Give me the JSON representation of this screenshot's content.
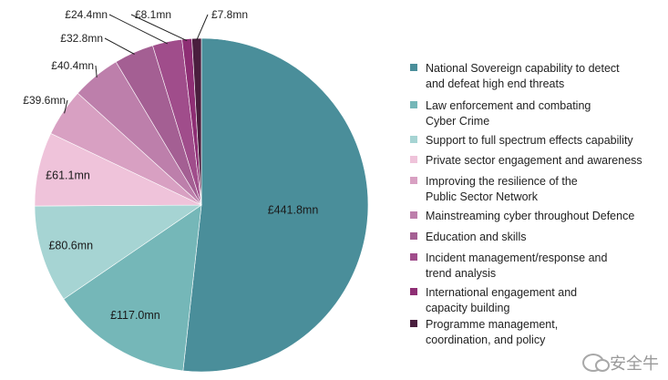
{
  "chart_data": {
    "type": "pie",
    "title": "",
    "slices": [
      {
        "name": "National Sovereign capability to detect and defeat high end threats",
        "legend_lines": [
          "National Sovereign capability to detect",
          "and defeat high end threats"
        ],
        "value": 441.8,
        "label": "£441.8mn",
        "color": "#4a8e9a"
      },
      {
        "name": "Law enforcement and combating Cyber Crime",
        "legend_lines": [
          "Law enforcement and combating",
          "Cyber Crime"
        ],
        "value": 117.0,
        "label": "£117.0mn",
        "color": "#75b7b8"
      },
      {
        "name": "Support to full spectrum effects capability",
        "legend_lines": [
          "Support to full spectrum effects capability"
        ],
        "value": 80.6,
        "label": "£80.6mn",
        "color": "#a6d4d3"
      },
      {
        "name": "Private sector engagement and awareness",
        "legend_lines": [
          "Private sector engagement and awareness"
        ],
        "value": 61.1,
        "label": "£61.1mn",
        "color": "#efc3da"
      },
      {
        "name": "Improving the resilience of the Public Sector Network",
        "legend_lines": [
          "Improving the resilience of the",
          "Public Sector Network"
        ],
        "value": 39.6,
        "label": "£39.6mn",
        "color": "#d8a0c2"
      },
      {
        "name": "Mainstreaming cyber throughout Defence",
        "legend_lines": [
          "Mainstreaming cyber throughout Defence"
        ],
        "value": 40.4,
        "label": "£40.4mn",
        "color": "#bd7fab"
      },
      {
        "name": "Education and skills",
        "legend_lines": [
          "Education and skills"
        ],
        "value": 32.8,
        "label": "£32.8mn",
        "color": "#a45f93"
      },
      {
        "name": "Incident management/response and trend analysis",
        "legend_lines": [
          "Incident management/response and",
          "trend analysis"
        ],
        "value": 24.4,
        "label": "£24.4mn",
        "color": "#a04d8b"
      },
      {
        "name": "International engagement and capacity building",
        "legend_lines": [
          "International engagement and",
          "capacity building"
        ],
        "value": 8.1,
        "label": "£8.1mn",
        "color": "#8e2e74"
      },
      {
        "name": "Programme management, coordination, and policy",
        "legend_lines": [
          "Programme management,",
          "coordination, and policy"
        ],
        "value": 7.8,
        "label": "£7.8mn",
        "color": "#4a1e3e"
      }
    ],
    "legend_position": "right",
    "start_angle": "12 o'clock",
    "direction": "clockwise"
  },
  "watermark": {
    "text": "安全牛",
    "icon": "wechat-icon"
  }
}
